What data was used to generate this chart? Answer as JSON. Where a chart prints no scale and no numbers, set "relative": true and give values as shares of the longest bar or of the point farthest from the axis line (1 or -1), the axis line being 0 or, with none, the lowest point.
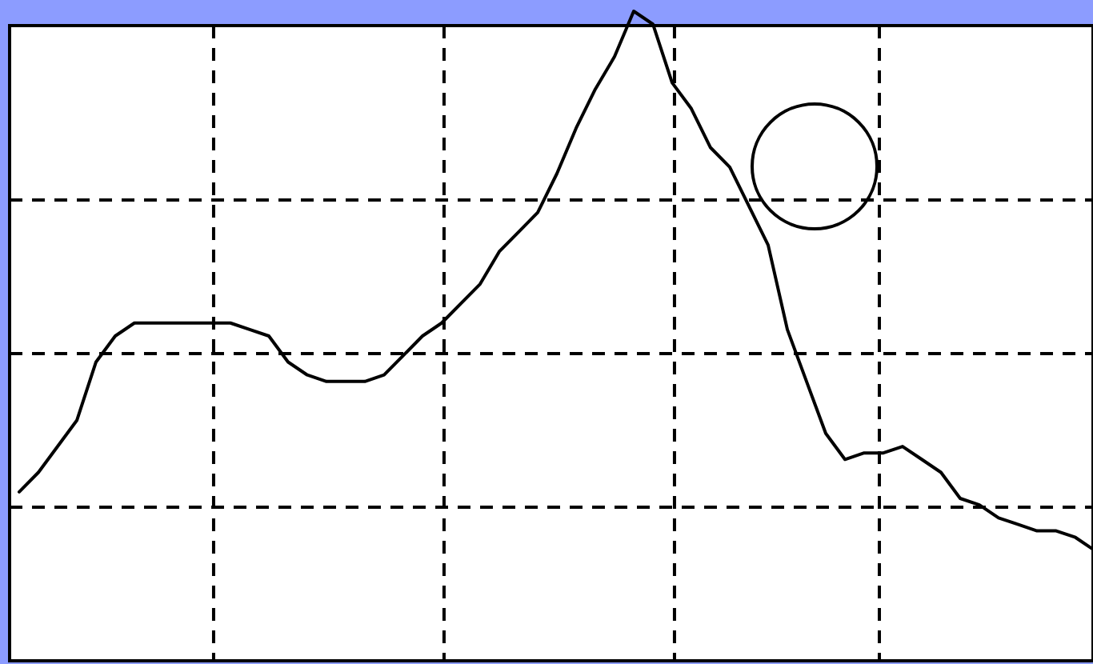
{
  "chart_data": {
    "type": "line",
    "relative": true,
    "grid": true,
    "categories": [
      null,
      null,
      null,
      null,
      null,
      null,
      null,
      null,
      null,
      null,
      null,
      null,
      null,
      null,
      null,
      null,
      null,
      null,
      null,
      null,
      null,
      null,
      null,
      null,
      null,
      null,
      null,
      null,
      null,
      null,
      null,
      null,
      null,
      null,
      null,
      null,
      null,
      null,
      null,
      null,
      null,
      null,
      null,
      null,
      null,
      null,
      null,
      null,
      null,
      null,
      null,
      null,
      null,
      null,
      null,
      null,
      null
    ],
    "series": [
      {
        "color": "#000000",
        "values": [
          0.26,
          0.29,
          0.33,
          0.37,
          0.46,
          0.5,
          0.52,
          0.52,
          0.52,
          0.52,
          0.52,
          0.52,
          0.51,
          0.5,
          0.46,
          0.44,
          0.43,
          0.43,
          0.43,
          0.44,
          0.47,
          0.5,
          0.52,
          0.55,
          0.58,
          0.63,
          0.66,
          0.69,
          0.75,
          0.82,
          0.88,
          0.93,
          1,
          0.98,
          0.89,
          0.85,
          0.79,
          0.76,
          0.7,
          0.64,
          0.51,
          0.43,
          0.35,
          0.31,
          0.32,
          0.32,
          0.33,
          0.31,
          0.29,
          0.25,
          0.24,
          0.22,
          0.21,
          0.2,
          0.2,
          0.19,
          0.17
        ]
      }
    ]
  }
}
